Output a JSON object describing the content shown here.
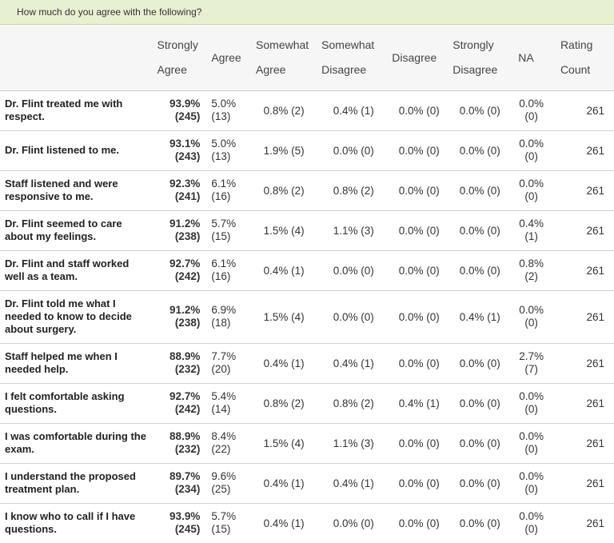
{
  "question": "How much do you agree with the following?",
  "columns": {
    "strongly_agree": [
      "Strongly",
      "Agree"
    ],
    "agree": "Agree",
    "somewhat_agree": [
      "Somewhat",
      "Agree"
    ],
    "somewhat_disagree": [
      "Somewhat",
      "Disagree"
    ],
    "disagree": "Disagree",
    "strongly_disagree": [
      "Strongly",
      "Disagree"
    ],
    "na": "NA",
    "rating_count": [
      "Rating",
      "Count"
    ]
  },
  "rows": [
    {
      "label": "Dr. Flint treated me with respect.",
      "sa_pct": "93.9%",
      "sa_n": "(245)",
      "a_pct": "5.0%",
      "a_n": "(13)",
      "swa": "0.8% (2)",
      "swd": "0.4% (1)",
      "d": "0.0% (0)",
      "sd": "0.0% (0)",
      "na_pct": "0.0%",
      "na_n": "(0)",
      "count": "261"
    },
    {
      "label": "Dr. Flint listened to me.",
      "sa_pct": "93.1%",
      "sa_n": "(243)",
      "a_pct": "5.0%",
      "a_n": "(13)",
      "swa": "1.9% (5)",
      "swd": "0.0% (0)",
      "d": "0.0% (0)",
      "sd": "0.0% (0)",
      "na_pct": "0.0%",
      "na_n": "(0)",
      "count": "261"
    },
    {
      "label": "Staff listened and were responsive to me.",
      "sa_pct": "92.3%",
      "sa_n": "(241)",
      "a_pct": "6.1%",
      "a_n": "(16)",
      "swa": "0.8% (2)",
      "swd": "0.8% (2)",
      "d": "0.0% (0)",
      "sd": "0.0% (0)",
      "na_pct": "0.0%",
      "na_n": "(0)",
      "count": "261"
    },
    {
      "label": "Dr. Flint seemed to care about my feelings.",
      "sa_pct": "91.2%",
      "sa_n": "(238)",
      "a_pct": "5.7%",
      "a_n": "(15)",
      "swa": "1.5% (4)",
      "swd": "1.1% (3)",
      "d": "0.0% (0)",
      "sd": "0.0% (0)",
      "na_pct": "0.4%",
      "na_n": "(1)",
      "count": "261"
    },
    {
      "label": "Dr. Flint and staff worked well as a team.",
      "sa_pct": "92.7%",
      "sa_n": "(242)",
      "a_pct": "6.1%",
      "a_n": "(16)",
      "swa": "0.4% (1)",
      "swd": "0.0% (0)",
      "d": "0.0% (0)",
      "sd": "0.0% (0)",
      "na_pct": "0.8%",
      "na_n": "(2)",
      "count": "261"
    },
    {
      "label": "Dr. Flint told me what I needed to know to decide about surgery.",
      "sa_pct": "91.2%",
      "sa_n": "(238)",
      "a_pct": "6.9%",
      "a_n": "(18)",
      "swa": "1.5% (4)",
      "swd": "0.0% (0)",
      "d": "0.0% (0)",
      "sd": "0.4% (1)",
      "na_pct": "0.0%",
      "na_n": "(0)",
      "count": "261"
    },
    {
      "label": "Staff helped me when I needed help.",
      "sa_pct": "88.9%",
      "sa_n": "(232)",
      "a_pct": "7.7%",
      "a_n": "(20)",
      "swa": "0.4% (1)",
      "swd": "0.4% (1)",
      "d": "0.0% (0)",
      "sd": "0.0% (0)",
      "na_pct": "2.7%",
      "na_n": "(7)",
      "count": "261"
    },
    {
      "label": "I felt comfortable asking questions.",
      "sa_pct": "92.7%",
      "sa_n": "(242)",
      "a_pct": "5.4%",
      "a_n": "(14)",
      "swa": "0.8% (2)",
      "swd": "0.8% (2)",
      "d": "0.4% (1)",
      "sd": "0.0% (0)",
      "na_pct": "0.0%",
      "na_n": "(0)",
      "count": "261"
    },
    {
      "label": "I was comfortable during the exam.",
      "sa_pct": "88.9%",
      "sa_n": "(232)",
      "a_pct": "8.4%",
      "a_n": "(22)",
      "swa": "1.5% (4)",
      "swd": "1.1% (3)",
      "d": "0.0% (0)",
      "sd": "0.0% (0)",
      "na_pct": "0.0%",
      "na_n": "(0)",
      "count": "261"
    },
    {
      "label": "I understand the proposed treatment plan.",
      "sa_pct": "89.7%",
      "sa_n": "(234)",
      "a_pct": "9.6%",
      "a_n": "(25)",
      "swa": "0.4% (1)",
      "swd": "0.4% (1)",
      "d": "0.0% (0)",
      "sd": "0.0% (0)",
      "na_pct": "0.0%",
      "na_n": "(0)",
      "count": "261"
    },
    {
      "label": "I know who to call if I have questions.",
      "sa_pct": "93.9%",
      "sa_n": "(245)",
      "a_pct": "5.7%",
      "a_n": "(15)",
      "swa": "0.4% (1)",
      "swd": "0.0% (0)",
      "d": "0.0% (0)",
      "sd": "0.0% (0)",
      "na_pct": "0.0%",
      "na_n": "(0)",
      "count": "261"
    }
  ]
}
